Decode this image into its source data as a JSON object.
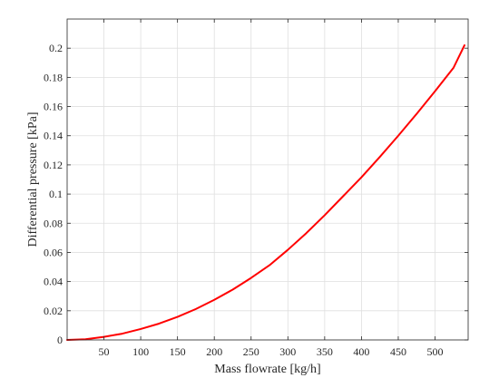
{
  "chart_data": {
    "type": "line",
    "title": "",
    "xlabel": "Mass flowrate [kg/h]",
    "ylabel": "Differential pressure [kPa]",
    "xlim": [
      0,
      545
    ],
    "ylim": [
      0,
      0.22
    ],
    "xticks": [
      50,
      100,
      150,
      200,
      250,
      300,
      350,
      400,
      450,
      500
    ],
    "xtick_labels": [
      "50",
      "100",
      "150",
      "200",
      "250",
      "300",
      "350",
      "400",
      "450",
      "500"
    ],
    "yticks": [
      0,
      0.02,
      0.04,
      0.06,
      0.08,
      0.1,
      0.12,
      0.14,
      0.16,
      0.18,
      0.2
    ],
    "ytick_labels": [
      "0",
      "0.02",
      "0.04",
      "0.06",
      "0.08",
      "0.1",
      "0.12",
      "0.14",
      "0.16",
      "0.18",
      "0.2"
    ],
    "grid": true,
    "series": [
      {
        "color": "#ff0000",
        "x": [
          0,
          25,
          50,
          75,
          100,
          125,
          150,
          175,
          200,
          225,
          250,
          275,
          300,
          325,
          350,
          375,
          400,
          425,
          450,
          475,
          500,
          525,
          540
        ],
        "y": [
          0,
          0.0005,
          0.0021,
          0.0043,
          0.0075,
          0.0112,
          0.0158,
          0.0212,
          0.0275,
          0.0345,
          0.0425,
          0.0512,
          0.0618,
          0.0732,
          0.0855,
          0.0985,
          0.1115,
          0.1255,
          0.14,
          0.155,
          0.1705,
          0.1865,
          0.202
        ]
      }
    ]
  }
}
